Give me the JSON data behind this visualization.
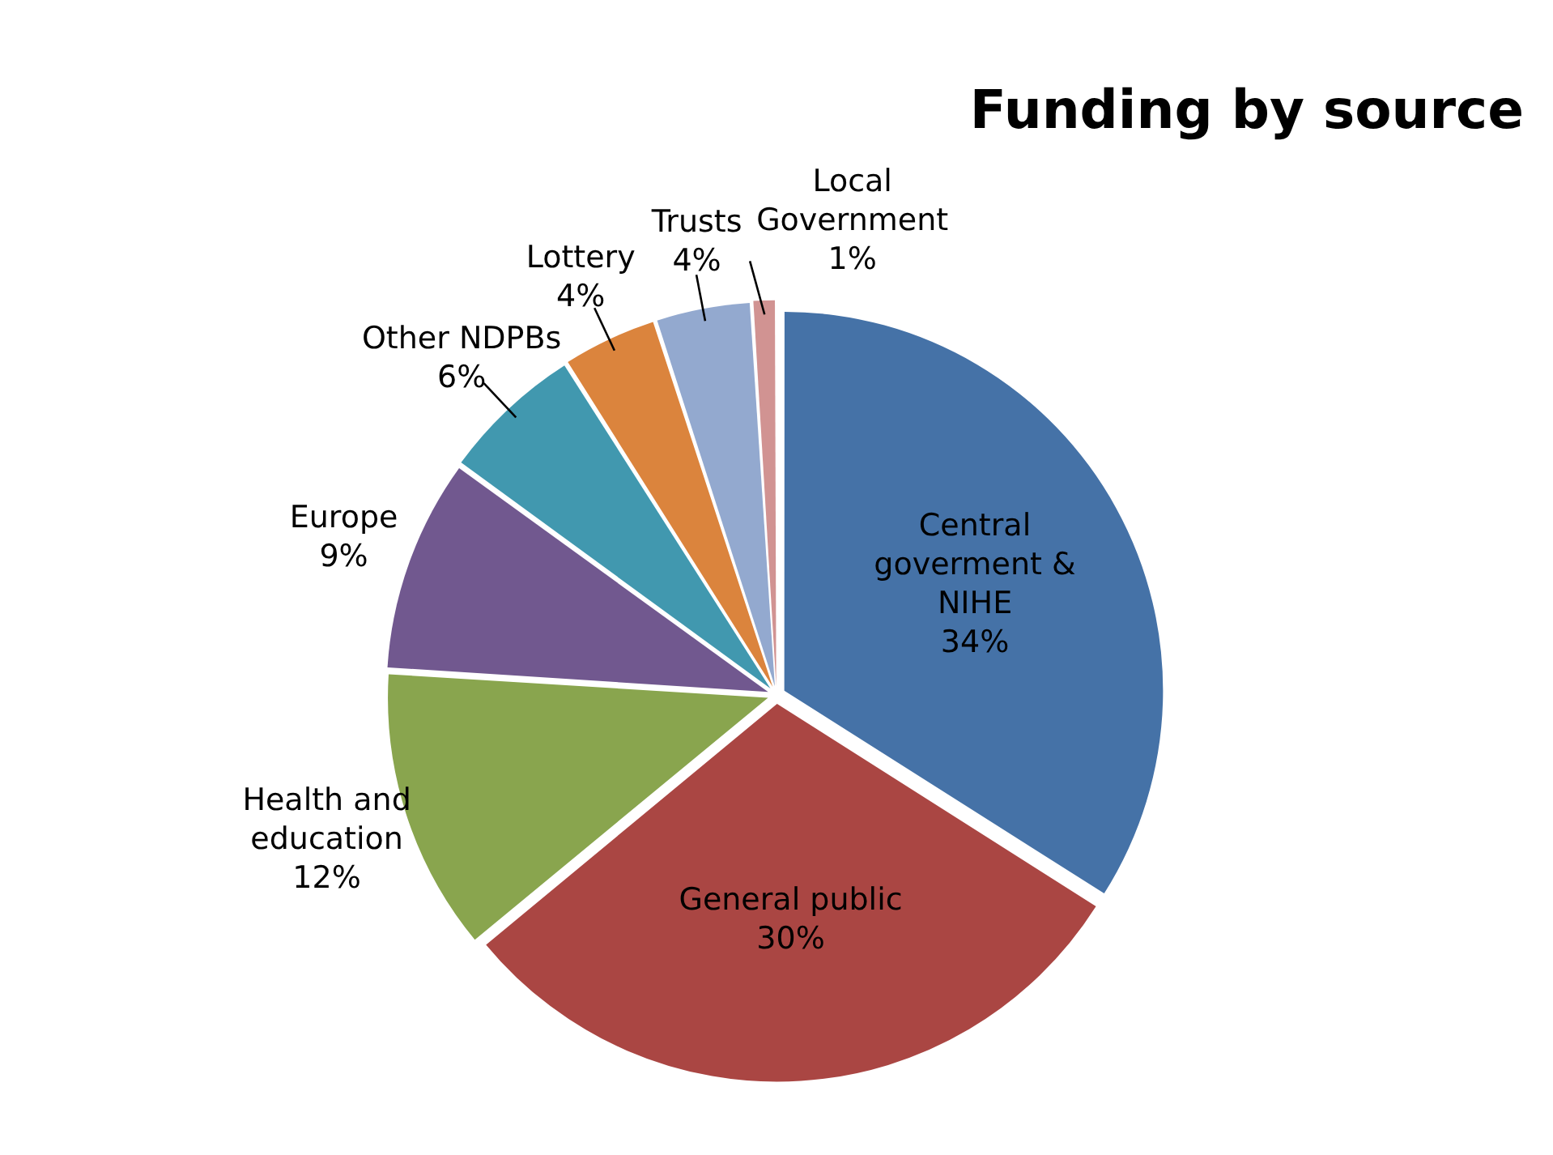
{
  "chart_data": {
    "type": "pie",
    "title": "Funding by source",
    "categories": [
      "Central goverment & NIHE",
      "General public",
      "Health and education",
      "Europe",
      "Other NDPBs",
      "Lottery",
      "Trusts",
      "Local Government"
    ],
    "values": [
      34,
      30,
      12,
      9,
      6,
      4,
      4,
      1
    ],
    "colors": [
      "#4572a7",
      "#aa4643",
      "#89a54e",
      "#71588f",
      "#4198af",
      "#db843d",
      "#93a9cf",
      "#d19392"
    ],
    "value_labels": [
      "34%",
      "30%",
      "12%",
      "9%",
      "6%",
      "4%",
      "4%",
      "1%"
    ],
    "legend": false
  }
}
